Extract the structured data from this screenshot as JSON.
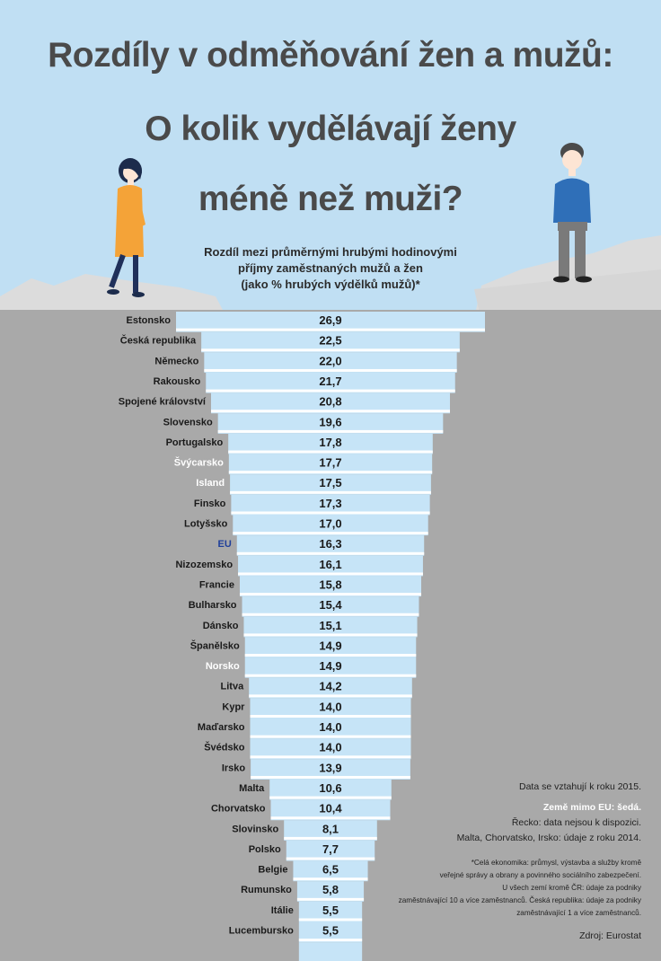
{
  "title": {
    "line1": "Rozdíly v odměňování žen a mužů:",
    "line2": "O kolik vydělávají ženy",
    "line3": "méně než muži?"
  },
  "subtitle": {
    "line1": "Rozdíl mezi průměrnými hrubými hodinovými",
    "line2": "příjmy zaměstnaných mužů a žen",
    "line3": "(jako  % hrubých výdělků mužů)*"
  },
  "notes": {
    "year": "Data se vztahují k roku 2015.",
    "non_eu": "Země mimo EU: šedá.",
    "greece": "Řecko: data nejsou k dispozici.",
    "older": "Malta, Chorvatsko, Irsko: údaje z roku 2014.",
    "footnote1": "*Celá ekonomika: průmysl, výstavba a služby kromě",
    "footnote2": "veřejné správy a obrany a povinného sociálního zabezpečení.",
    "footnote3": "U všech zemí kromě ČR: údaje za podniky",
    "footnote4": "zaměstnávající 10 a více zaměstnanců. Česká republika: údaje za podniky",
    "footnote5": "zaměstnávající 1 a více zaměstnanců.",
    "source": "Zdroj: Eurostat"
  },
  "colors": {
    "sky": "#c0dff3",
    "ground": "#a9a9a9",
    "cliff": "#dcdcdc",
    "bar": "#c6e4f7",
    "bar_separator": "#ffffff",
    "label_default": "#1a1a1a",
    "label_non_eu": "#ffffff",
    "label_eu": "#1f3f9a",
    "woman_dress": "#f4a338",
    "man_sweater": "#2f6fb8"
  },
  "chart_data": {
    "type": "bar",
    "orientation": "horizontal",
    "title": "Rozdíl mezi průměrnými hrubými hodinovými příjmy zaměstnaných mužů a žen (jako  % hrubých výdělků mužů)*",
    "value_format": "comma-decimal",
    "xlim": [
      0,
      26.9
    ],
    "categories": [
      "Estonsko",
      "Česká republika",
      "Německo",
      "Rakousko",
      "Spojené království",
      "Slovensko",
      "Portugalsko",
      "Švýcarsko",
      "Island",
      "Finsko",
      "Lotyšsko",
      "EU",
      "Nizozemsko",
      "Francie",
      "Bulharsko",
      "Dánsko",
      "Španělsko",
      "Norsko",
      "Litva",
      "Kypr",
      "Maďarsko",
      "Švédsko",
      "Irsko",
      "Malta",
      "Chorvatsko",
      "Slovinsko",
      "Polsko",
      "Belgie",
      "Rumunsko",
      "Itálie",
      "Lucembursko"
    ],
    "values": [
      26.9,
      22.5,
      22.0,
      21.7,
      20.8,
      19.6,
      17.8,
      17.7,
      17.5,
      17.3,
      17.0,
      16.3,
      16.1,
      15.8,
      15.4,
      15.1,
      14.9,
      14.9,
      14.2,
      14.0,
      14.0,
      14.0,
      13.9,
      10.6,
      10.4,
      8.1,
      7.7,
      6.5,
      5.8,
      5.5,
      5.5
    ],
    "value_labels": [
      "26,9",
      "22,5",
      "22,0",
      "21,7",
      "20,8",
      "19,6",
      "17,8",
      "17,7",
      "17,5",
      "17,3",
      "17,0",
      "16,3",
      "16,1",
      "15,8",
      "15,4",
      "15,1",
      "14,9",
      "14,9",
      "14,2",
      "14,0",
      "14,0",
      "14,0",
      "13,9",
      "10,6",
      "10,4",
      "8,1",
      "7,7",
      "6,5",
      "5,8",
      "5,5",
      "5,5"
    ],
    "group": [
      "eu",
      "eu",
      "eu",
      "eu",
      "eu",
      "eu",
      "eu",
      "non-eu",
      "non-eu",
      "eu",
      "eu",
      "eu-average",
      "eu",
      "eu",
      "eu",
      "eu",
      "eu",
      "non-eu",
      "eu",
      "eu",
      "eu",
      "eu",
      "eu",
      "eu",
      "eu",
      "eu",
      "eu",
      "eu",
      "eu",
      "eu",
      "eu"
    ]
  }
}
